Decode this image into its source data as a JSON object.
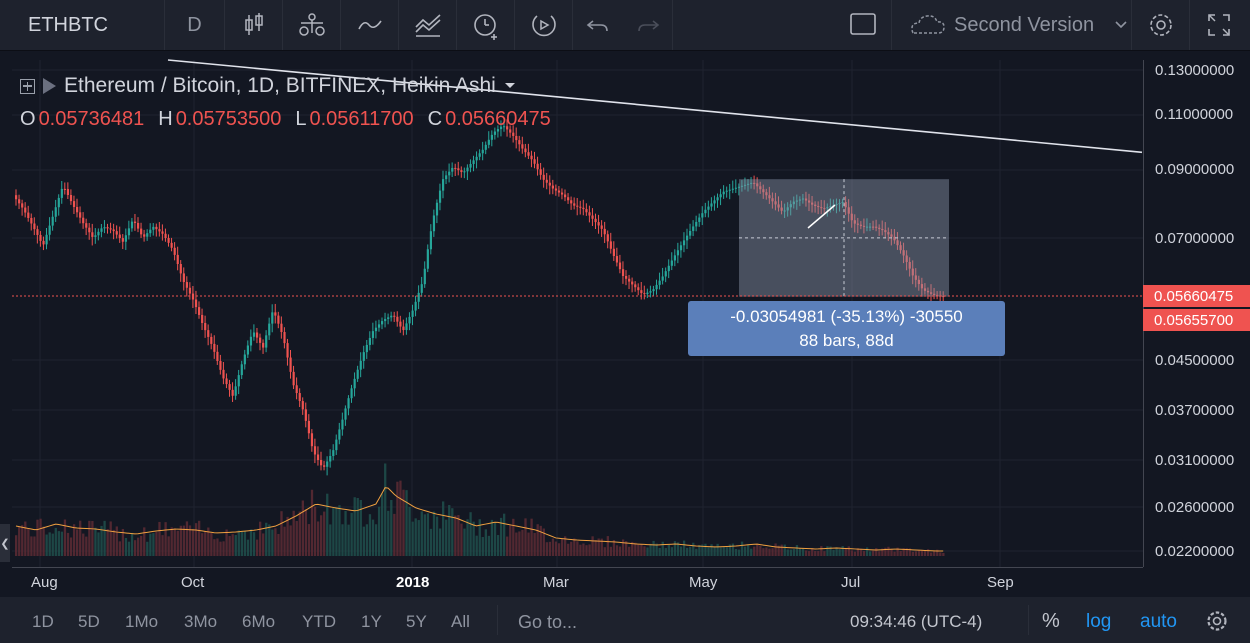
{
  "toolbar": {
    "symbol": "ETHBTC",
    "interval": "D",
    "version_label": "Second Version",
    "icons": [
      "candles-icon",
      "indicators-icon",
      "compare-icon",
      "templates-icon",
      "alert-icon",
      "replay-icon",
      "undo-icon",
      "redo-icon",
      "layout-icon",
      "cloud-icon",
      "chevron-down-icon",
      "gear-icon",
      "fullscreen-icon"
    ]
  },
  "legend": {
    "title": "Ethereum / Bitcoin, 1D, BITFINEX, Heikin Ashi",
    "o_label": "O",
    "o_value": "0.05736481",
    "h_label": "H",
    "h_value": "0.05753500",
    "l_label": "L",
    "l_value": "0.05611700",
    "c_label": "C",
    "c_value": "0.05660475"
  },
  "measure": {
    "line1": "-0.03054981 (-35.13%) -30550",
    "line2": "88 bars, 88d"
  },
  "colors": {
    "background": "#131722",
    "up": "#26a69a",
    "down": "#ef5350",
    "measure_box": "#5b7fba",
    "trendline": "#e0e3eb",
    "ma_line": "#f0a040"
  },
  "bottom_bar": {
    "ranges": [
      "1D",
      "5D",
      "1Mo",
      "3Mo",
      "6Mo",
      "YTD",
      "1Y",
      "5Y",
      "All"
    ],
    "goto": "Go to...",
    "time": "09:34:46 (UTC-4)",
    "percent": "%",
    "log": "log",
    "auto": "auto"
  },
  "chart_data": {
    "type": "candlestick",
    "style": "Heikin Ashi",
    "price_ticks": [
      "0.13000000",
      "0.11000000",
      "0.09000000",
      "0.07000000",
      "0.04500000",
      "0.03700000",
      "0.03100000",
      "0.02600000",
      "0.02200000"
    ],
    "price_labels": [
      "0.05660475",
      "0.05655700"
    ],
    "time_ticks": [
      "Aug",
      "Oct",
      "2018",
      "Mar",
      "May",
      "Jul",
      "Sep"
    ],
    "close_series": [
      [
        0,
        0.082
      ],
      [
        10,
        0.078
      ],
      [
        20,
        0.073
      ],
      [
        30,
        0.068
      ],
      [
        40,
        0.076
      ],
      [
        50,
        0.085
      ],
      [
        60,
        0.079
      ],
      [
        70,
        0.074
      ],
      [
        80,
        0.07
      ],
      [
        90,
        0.073
      ],
      [
        100,
        0.072
      ],
      [
        110,
        0.069
      ],
      [
        120,
        0.075
      ],
      [
        130,
        0.07
      ],
      [
        140,
        0.073
      ],
      [
        150,
        0.071
      ],
      [
        160,
        0.067
      ],
      [
        170,
        0.06
      ],
      [
        180,
        0.056
      ],
      [
        190,
        0.051
      ],
      [
        200,
        0.047
      ],
      [
        210,
        0.042
      ],
      [
        220,
        0.039
      ],
      [
        230,
        0.045
      ],
      [
        240,
        0.05
      ],
      [
        250,
        0.047
      ],
      [
        260,
        0.054
      ],
      [
        270,
        0.049
      ],
      [
        280,
        0.041
      ],
      [
        290,
        0.037
      ],
      [
        300,
        0.032
      ],
      [
        310,
        0.03
      ],
      [
        320,
        0.032
      ],
      [
        330,
        0.036
      ],
      [
        340,
        0.041
      ],
      [
        350,
        0.046
      ],
      [
        360,
        0.05
      ],
      [
        370,
        0.052
      ],
      [
        380,
        0.053
      ],
      [
        390,
        0.05
      ],
      [
        400,
        0.054
      ],
      [
        410,
        0.06
      ],
      [
        420,
        0.075
      ],
      [
        430,
        0.087
      ],
      [
        440,
        0.091
      ],
      [
        450,
        0.089
      ],
      [
        460,
        0.093
      ],
      [
        470,
        0.097
      ],
      [
        480,
        0.103
      ],
      [
        490,
        0.106
      ],
      [
        500,
        0.102
      ],
      [
        510,
        0.097
      ],
      [
        520,
        0.093
      ],
      [
        530,
        0.087
      ],
      [
        540,
        0.084
      ],
      [
        550,
        0.082
      ],
      [
        560,
        0.079
      ],
      [
        570,
        0.078
      ],
      [
        580,
        0.075
      ],
      [
        590,
        0.072
      ],
      [
        600,
        0.066
      ],
      [
        610,
        0.061
      ],
      [
        620,
        0.059
      ],
      [
        630,
        0.057
      ],
      [
        640,
        0.058
      ],
      [
        650,
        0.061
      ],
      [
        660,
        0.065
      ],
      [
        670,
        0.069
      ],
      [
        680,
        0.073
      ],
      [
        690,
        0.077
      ],
      [
        700,
        0.08
      ],
      [
        710,
        0.083
      ],
      [
        720,
        0.084
      ],
      [
        730,
        0.085
      ],
      [
        740,
        0.086
      ],
      [
        750,
        0.083
      ],
      [
        760,
        0.08
      ],
      [
        770,
        0.077
      ],
      [
        780,
        0.08
      ],
      [
        790,
        0.081
      ],
      [
        800,
        0.079
      ],
      [
        810,
        0.078
      ],
      [
        820,
        0.079
      ],
      [
        830,
        0.08
      ],
      [
        840,
        0.074
      ],
      [
        850,
        0.073
      ],
      [
        860,
        0.073
      ],
      [
        870,
        0.072
      ],
      [
        880,
        0.07
      ],
      [
        890,
        0.066
      ],
      [
        900,
        0.061
      ],
      [
        910,
        0.058
      ],
      [
        920,
        0.057
      ],
      [
        930,
        0.0566
      ],
      [
        940,
        0.0572
      ]
    ],
    "volume_series": [
      [
        0,
        30
      ],
      [
        20,
        26
      ],
      [
        40,
        32
      ],
      [
        60,
        28
      ],
      [
        80,
        27
      ],
      [
        100,
        24
      ],
      [
        120,
        22
      ],
      [
        140,
        25
      ],
      [
        160,
        27
      ],
      [
        180,
        26
      ],
      [
        200,
        23
      ],
      [
        220,
        24
      ],
      [
        240,
        26
      ],
      [
        260,
        30
      ],
      [
        280,
        40
      ],
      [
        300,
        52
      ],
      [
        320,
        48
      ],
      [
        340,
        45
      ],
      [
        360,
        52
      ],
      [
        370,
        70
      ],
      [
        380,
        60
      ],
      [
        400,
        48
      ],
      [
        420,
        42
      ],
      [
        440,
        38
      ],
      [
        460,
        30
      ],
      [
        480,
        34
      ],
      [
        500,
        30
      ],
      [
        520,
        26
      ],
      [
        540,
        18
      ],
      [
        560,
        16
      ],
      [
        580,
        15
      ],
      [
        600,
        14
      ],
      [
        620,
        12
      ],
      [
        640,
        11
      ],
      [
        660,
        12
      ],
      [
        680,
        10
      ],
      [
        700,
        9
      ],
      [
        720,
        10
      ],
      [
        740,
        12
      ],
      [
        760,
        9
      ],
      [
        780,
        8
      ],
      [
        800,
        7
      ],
      [
        820,
        8
      ],
      [
        840,
        7
      ],
      [
        860,
        6
      ],
      [
        880,
        7
      ],
      [
        900,
        6
      ],
      [
        920,
        5
      ],
      [
        940,
        5
      ]
    ],
    "trendline": [
      [
        0,
        0.125
      ],
      [
        1130,
        0.096
      ]
    ],
    "measure_range": {
      "start_x": 740,
      "end_x": 950,
      "high": 0.087,
      "low": 0.0566
    }
  }
}
